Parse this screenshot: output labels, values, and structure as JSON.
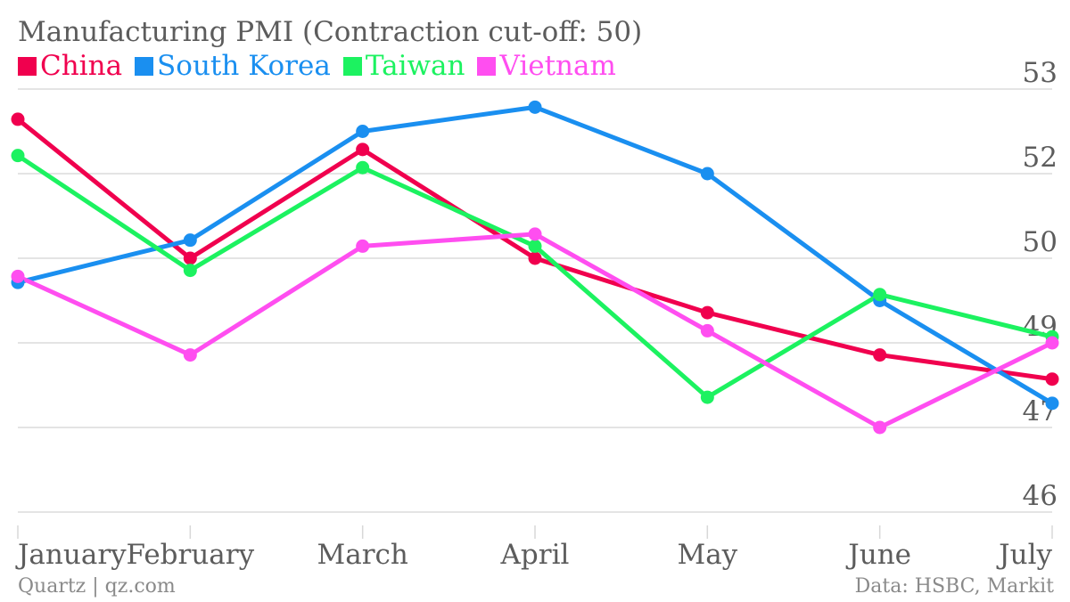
{
  "chart_data": {
    "type": "line",
    "title": "Manufacturing PMI (Contraction cut-off: 50)",
    "categories": [
      "January",
      "February",
      "March",
      "April",
      "May",
      "June",
      "July"
    ],
    "yticks": [
      "53",
      "52",
      "50",
      "49",
      "47",
      "46"
    ],
    "series": [
      {
        "name": "China",
        "color": "#f0004e",
        "values": [
          52.5,
          50.2,
          52.0,
          50.2,
          49.3,
          48.6,
          48.2
        ]
      },
      {
        "name": "South Korea",
        "color": "#1a8ff0",
        "values": [
          49.8,
          50.5,
          52.3,
          52.7,
          51.6,
          49.5,
          47.8
        ]
      },
      {
        "name": "Taiwan",
        "color": "#1cf260",
        "values": [
          51.9,
          50.0,
          51.7,
          50.4,
          47.9,
          49.6,
          48.9
        ]
      },
      {
        "name": "Vietnam",
        "color": "#ff4ef0",
        "values": [
          49.9,
          48.6,
          50.4,
          50.6,
          49.0,
          47.4,
          48.8
        ]
      }
    ],
    "grid": true,
    "legend": "top-left"
  },
  "footer": {
    "source_left": "Quartz | qz.com",
    "source_right": "Data: HSBC, Markit"
  }
}
